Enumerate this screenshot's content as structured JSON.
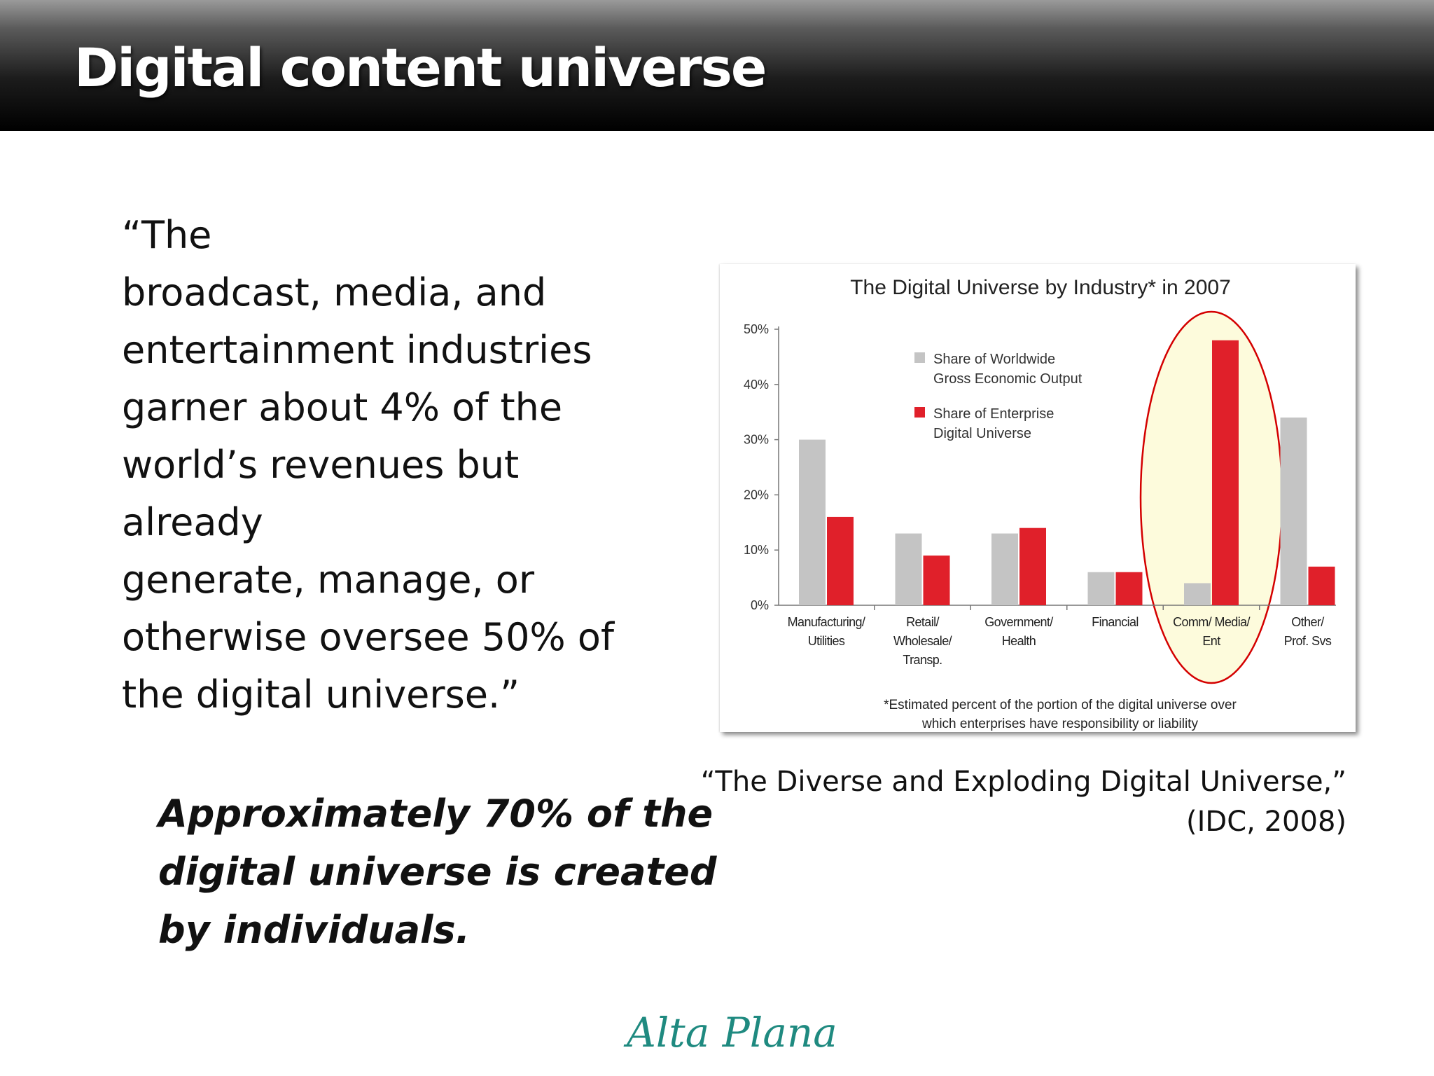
{
  "slide": {
    "title": "Digital content universe",
    "quote_lines": [
      "“The",
      "broadcast, media, and",
      "entertainment industries",
      "garner about 4% of the",
      "world’s revenues but",
      "already",
      "generate, manage, or",
      "otherwise oversee 50% of",
      "the digital universe.”"
    ],
    "emphasis_lines": [
      "Approximately 70% of the",
      "digital universe is created",
      "by individuals."
    ],
    "caption_lines": [
      "“The Diverse and Exploding Digital Universe,”",
      "(IDC, 2008)"
    ],
    "logo": "Alta Plana"
  },
  "chart_data": {
    "type": "bar",
    "title": "The Digital Universe by Industry* in 2007",
    "categories": [
      [
        "Manufacturing/",
        "Utilities"
      ],
      [
        "Retail/",
        "Wholesale/",
        "Transp."
      ],
      [
        "Government/",
        "Health"
      ],
      [
        "Financial"
      ],
      [
        "Comm/ Media/",
        "Ent"
      ],
      [
        "Other/",
        "Prof. Svs"
      ]
    ],
    "series": [
      {
        "name": "Share of Worldwide Gross Economic Output",
        "legend_lines": [
          "Share of Worldwide",
          "Gross Economic Output"
        ],
        "color": "#c4c4c4",
        "values": [
          30,
          13,
          13,
          6,
          4,
          34
        ]
      },
      {
        "name": "Share of Enterprise Digital Universe",
        "legend_lines": [
          "Share of Enterprise",
          "Digital Universe"
        ],
        "color": "#e0202a",
        "values": [
          16,
          9,
          14,
          6,
          48,
          7
        ]
      }
    ],
    "ylim": [
      0,
      50
    ],
    "yticks": [
      "0%",
      "10%",
      "20%",
      "30%",
      "40%",
      "50%"
    ],
    "footnote_lines": [
      "*Estimated percent of the portion of the digital universe over",
      "which enterprises have responsibility or liability"
    ],
    "highlight_category": "Comm/ Media/ Ent",
    "highlight_color": "#d40000",
    "highlight_fill": "#fdfbdc"
  }
}
